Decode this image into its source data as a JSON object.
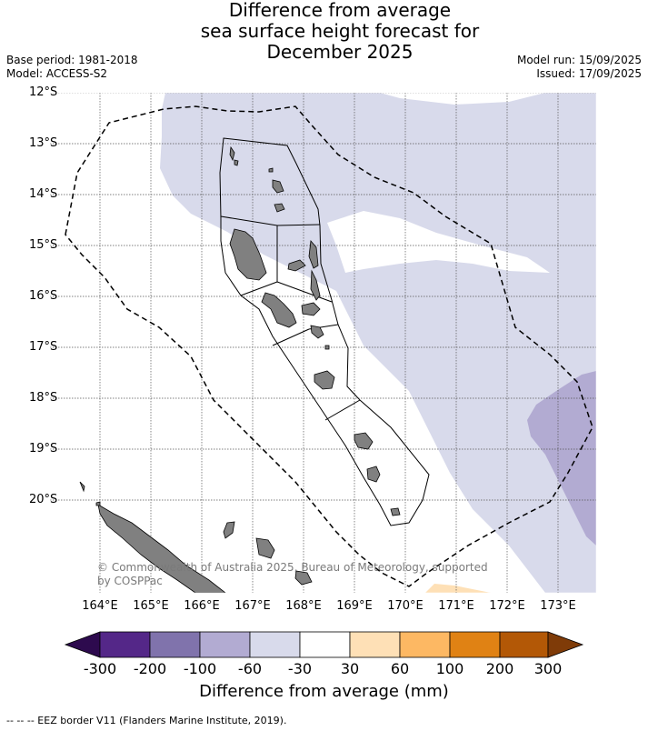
{
  "title": {
    "line1": "Difference from average",
    "line2": "sea surface height forecast for",
    "line3": "December 2025"
  },
  "meta_left": {
    "base_period": "Base period: 1981-2018",
    "model": "Model: ACCESS-S2"
  },
  "meta_right": {
    "model_run": "Model run: 15/09/2025",
    "issued": "Issued: 17/09/2025"
  },
  "map": {
    "region": "Vanuatu EEZ",
    "lat_labels": [
      "12°S",
      "13°S",
      "14°S",
      "15°S",
      "16°S",
      "17°S",
      "18°S",
      "19°S",
      "20°S"
    ],
    "lon_labels": [
      "164°E",
      "165°E",
      "166°E",
      "167°E",
      "168°E",
      "169°E",
      "170°E",
      "171°E",
      "172°E",
      "173°E"
    ],
    "copyright": "© Commonwealth of Australia 2025, Bureau of Meteorology, supported by COSPPac"
  },
  "colorbar": {
    "title": "Difference from average (mm)",
    "tick_labels": [
      "-300",
      "-200",
      "-100",
      "-60",
      "-30",
      "30",
      "60",
      "100",
      "200",
      "300"
    ],
    "colors": {
      "under": "#2d0a4e",
      "c1": "#542788",
      "c2": "#8073ac",
      "c3": "#b2abd2",
      "c4": "#d8daeb",
      "c5": "#ffffff",
      "c6": "#fee0b6",
      "c7": "#fdb863",
      "c8": "#e08214",
      "c9": "#b35806",
      "over": "#7f3b08"
    }
  },
  "footnote": "--  --  -- EEZ border V11 (Flanders Marine Institute, 2019)."
}
